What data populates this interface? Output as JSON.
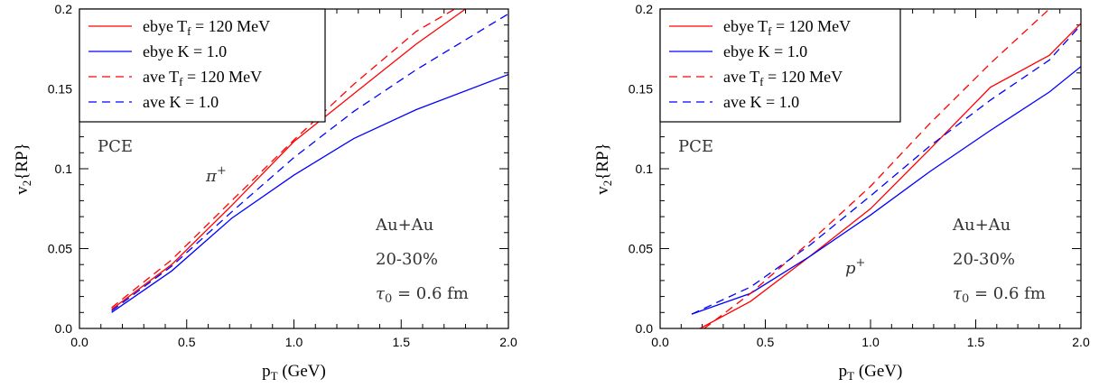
{
  "chart_data": [
    {
      "type": "line",
      "xlabel": "p",
      "xlabel_sub": "T",
      "xlabel_unit": " (GeV)",
      "ylabel": "v",
      "ylabel_sub": "2",
      "ylabel_rest": "{RP}",
      "xlim": [
        0.0,
        2.0
      ],
      "ylim": [
        0.0,
        0.2
      ],
      "xticks": [
        "0.0",
        "0.5",
        "1.0",
        "1.5",
        "2.0"
      ],
      "yticks": [
        "0.0",
        "0.05",
        "0.1",
        "0.15",
        "0.2"
      ],
      "legend_position": "top-left",
      "annotations": {
        "pce": "PCE",
        "particle": "π",
        "particle_charge": "+",
        "system": "Au+Au",
        "centrality": "20-30%",
        "tau": "τ",
        "tau_sub": "0",
        "tau_value": " = 0.6 fm"
      },
      "series": [
        {
          "name": "ebye T_f = 120 MeV",
          "legend_main": "ebye T",
          "legend_sub": "f",
          "legend_tail": " = 120 MeV",
          "color": "#ff0000",
          "dash": "solid",
          "x": [
            0.15,
            0.43,
            0.71,
            1.0,
            1.28,
            1.57,
            1.8
          ],
          "y": [
            0.012,
            0.04,
            0.077,
            0.117,
            0.147,
            0.178,
            0.2
          ]
        },
        {
          "name": "ebye K = 1.0",
          "legend_main": "ebye K = 1.0",
          "legend_sub": "",
          "legend_tail": "",
          "color": "#0000ff",
          "dash": "solid",
          "x": [
            0.15,
            0.43,
            0.71,
            1.0,
            1.28,
            1.57,
            2.0
          ],
          "y": [
            0.01,
            0.036,
            0.069,
            0.096,
            0.119,
            0.137,
            0.159
          ]
        },
        {
          "name": "ave T_f = 120 MeV",
          "legend_main": "ave T",
          "legend_sub": "f",
          "legend_tail": " = 120 MeV",
          "color": "#ff0000",
          "dash": "dashed",
          "x": [
            0.15,
            0.43,
            0.71,
            1.0,
            1.28,
            1.57,
            1.75
          ],
          "y": [
            0.013,
            0.043,
            0.08,
            0.118,
            0.153,
            0.186,
            0.2
          ]
        },
        {
          "name": "ave K = 1.0",
          "legend_main": "ave K = 1.0",
          "legend_sub": "",
          "legend_tail": "",
          "color": "#0000ff",
          "dash": "dashed",
          "x": [
            0.15,
            0.43,
            0.71,
            1.0,
            1.28,
            1.57,
            2.0
          ],
          "y": [
            0.011,
            0.039,
            0.073,
            0.107,
            0.136,
            0.162,
            0.197
          ]
        }
      ]
    },
    {
      "type": "line",
      "xlabel": "p",
      "xlabel_sub": "T",
      "xlabel_unit": " (GeV)",
      "ylabel": "v",
      "ylabel_sub": "2",
      "ylabel_rest": "{RP}",
      "xlim": [
        0.0,
        2.0
      ],
      "ylim": [
        0.0,
        0.2
      ],
      "xticks": [
        "0.0",
        "0.5",
        "1.0",
        "1.5",
        "2.0"
      ],
      "yticks": [
        "0.0",
        "0.05",
        "0.1",
        "0.15",
        "0.2"
      ],
      "legend_position": "top-left",
      "annotations": {
        "pce": "PCE",
        "particle": "p",
        "particle_charge": "+",
        "system": "Au+Au",
        "centrality": "20-30%",
        "tau": "τ",
        "tau_sub": "0",
        "tau_value": " = 0.6 fm"
      },
      "series": [
        {
          "name": "ebye T_f = 120 MeV",
          "legend_main": "ebye T",
          "legend_sub": "f",
          "legend_tail": " = 120 MeV",
          "color": "#ff0000",
          "dash": "solid",
          "x": [
            0.19,
            0.43,
            0.71,
            1.0,
            1.28,
            1.57,
            1.85,
            2.0
          ],
          "y": [
            0.0,
            0.017,
            0.045,
            0.075,
            0.112,
            0.151,
            0.171,
            0.191
          ]
        },
        {
          "name": "ebye K = 1.0",
          "legend_main": "ebye K = 1.0",
          "legend_sub": "",
          "legend_tail": "",
          "color": "#0000ff",
          "dash": "solid",
          "x": [
            0.15,
            0.43,
            0.71,
            1.0,
            1.28,
            1.57,
            1.85,
            2.0
          ],
          "y": [
            0.009,
            0.022,
            0.045,
            0.071,
            0.098,
            0.124,
            0.148,
            0.164
          ]
        },
        {
          "name": "ave T_f = 120 MeV",
          "legend_main": "ave T",
          "legend_sub": "f",
          "legend_tail": " = 120 MeV",
          "color": "#ff0000",
          "dash": "dashed",
          "x": [
            0.21,
            0.43,
            0.71,
            1.0,
            1.28,
            1.57,
            1.85
          ],
          "y": [
            0.0,
            0.022,
            0.054,
            0.089,
            0.128,
            0.166,
            0.2
          ]
        },
        {
          "name": "ave K = 1.0",
          "legend_main": "ave K = 1.0",
          "legend_sub": "",
          "legend_tail": "",
          "color": "#0000ff",
          "dash": "dashed",
          "x": [
            0.15,
            0.43,
            0.71,
            1.0,
            1.28,
            1.57,
            1.85,
            2.0
          ],
          "y": [
            0.009,
            0.026,
            0.052,
            0.083,
            0.114,
            0.143,
            0.168,
            0.19
          ]
        }
      ]
    }
  ]
}
